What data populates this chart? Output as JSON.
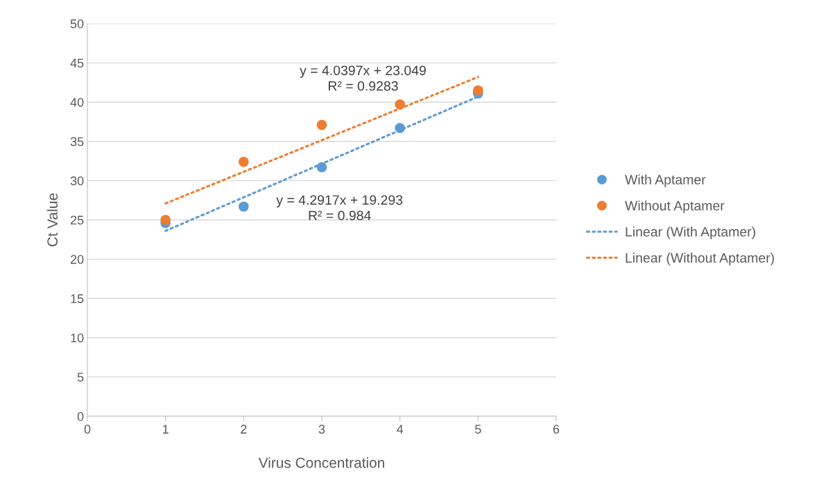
{
  "chart_data": {
    "type": "scatter",
    "xlabel": "Virus Concentration",
    "ylabel": "Ct Value",
    "series": [
      {
        "name": "With Aptamer",
        "color": "#5b9bd5",
        "x": [
          1,
          2,
          3,
          4,
          5
        ],
        "values": [
          24.6,
          26.7,
          31.7,
          36.7,
          41.1
        ],
        "marker": "circle"
      },
      {
        "name": "Without Aptamer",
        "color": "#ed7d31",
        "x": [
          1,
          2,
          3,
          4,
          5
        ],
        "values": [
          25.0,
          32.4,
          37.1,
          39.7,
          41.5
        ],
        "marker": "circle"
      },
      {
        "name": "Linear (With Aptamer)",
        "type": "line",
        "color": "#5b9bd5",
        "x": [
          1,
          5
        ],
        "values": [
          23.6,
          40.7
        ],
        "line_style": "dotted",
        "marker": "none"
      },
      {
        "name": "Linear (Without Aptamer)",
        "type": "line",
        "color": "#ed7d31",
        "x": [
          1,
          5
        ],
        "values": [
          27.1,
          43.2
        ],
        "line_style": "dotted",
        "marker": "none"
      }
    ],
    "annotations": [
      "y = 4.0397x + 23.049\nR² = 0.9283",
      "y = 4.2917x + 19.293\nR² = 0.984"
    ],
    "xlim": [
      0,
      6
    ],
    "xticks": [
      0,
      1,
      2,
      3,
      4,
      5,
      6
    ],
    "ylim": [
      0,
      50
    ],
    "yticks": [
      0,
      5,
      10,
      15,
      20,
      25,
      30,
      35,
      40,
      45,
      50
    ],
    "grid": "y",
    "legend": "right"
  }
}
